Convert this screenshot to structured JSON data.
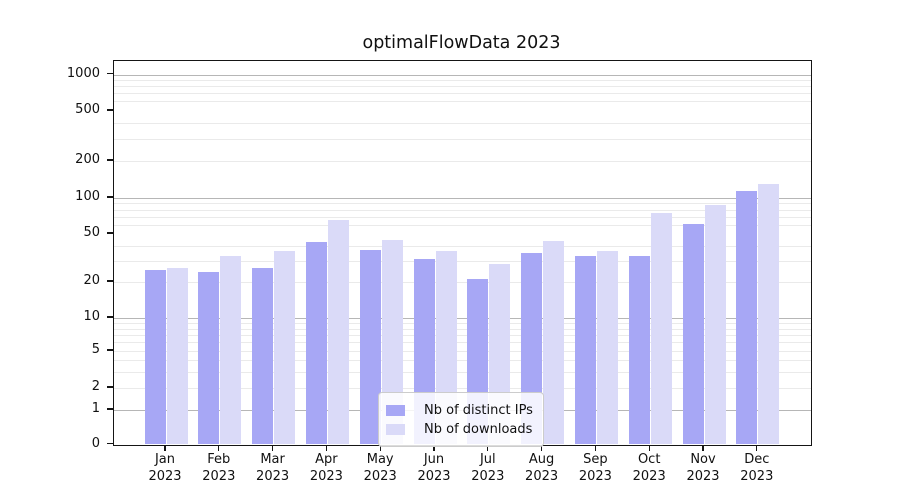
{
  "chart_data": {
    "type": "bar",
    "title": "optimalFlowData 2023",
    "categories": [
      "Jan 2023",
      "Feb 2023",
      "Mar 2023",
      "Apr 2023",
      "May 2023",
      "Jun 2023",
      "Jul 2023",
      "Aug 2023",
      "Sep 2023",
      "Oct 2023",
      "Nov 2023",
      "Dec 2023"
    ],
    "series": [
      {
        "name": "Nb of distinct IPs",
        "color": "#a7a7f5",
        "values": [
          25,
          24,
          26,
          43,
          37,
          31,
          21,
          35,
          33,
          33,
          61,
          115
        ]
      },
      {
        "name": "Nb of downloads",
        "color": "#dadaf8",
        "values": [
          26,
          33,
          36,
          65,
          45,
          36,
          28,
          44,
          36,
          75,
          88,
          130
        ]
      }
    ],
    "xlabel": "",
    "ylabel": "",
    "yscale": "symlog-like",
    "yticks": [
      0,
      1,
      2,
      5,
      10,
      20,
      50,
      100,
      200,
      500,
      1000
    ],
    "ylim": [
      0,
      1000
    ],
    "grid": true,
    "legend_position": "lower center inside plot"
  }
}
